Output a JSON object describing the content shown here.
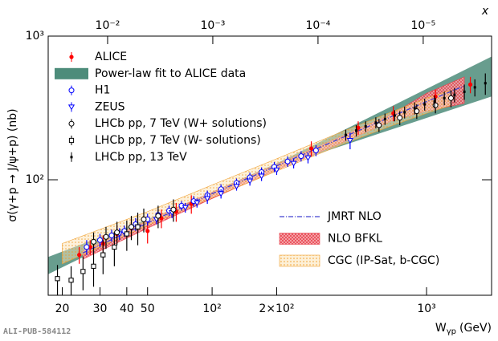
{
  "chart_data": {
    "type": "scatter",
    "log_x": true,
    "log_y": true,
    "x_label": {
      "main": "W",
      "sub": "γp",
      "unit": "(GeV)"
    },
    "y_label": "σ(γ+p → J/ψ+p) (nb)",
    "x2_label": "x",
    "watermark": "ALI-PUB-584112",
    "xlim": [
      17.2,
      2010
    ],
    "xticks": [
      20,
      30,
      40,
      50,
      {
        "value": 100,
        "label": "10²"
      },
      {
        "value": 200,
        "label": "2×10²"
      },
      {
        "value": 1000,
        "label": "10³"
      }
    ],
    "x2lim": [
      0.0367,
      2.24e-06
    ],
    "x2ticks": [
      {
        "value": 0.01,
        "label": "10⁻²"
      },
      {
        "value": 0.001,
        "label": "10⁻³"
      },
      {
        "value": 0.0001,
        "label": "10⁻⁴"
      },
      {
        "value": 1e-05,
        "label": "10⁻⁵"
      }
    ],
    "ylim": [
      15.7,
      1000
    ],
    "yticks": [
      {
        "value": 100,
        "label": "10²"
      },
      {
        "value": 1000,
        "label": "10³"
      }
    ],
    "series": [
      {
        "name": "ALICE",
        "kind": "points",
        "marker": "dot",
        "color": "#ff0000",
        "legend": "upper-left",
        "x": [
          24,
          27,
          31,
          36,
          42,
          50,
          58,
          68,
          80,
          290,
          480,
          700,
          1100,
          1600
        ],
        "values": [
          30,
          34,
          36,
          42,
          46,
          44,
          54,
          60,
          68,
          165,
          230,
          290,
          380,
          460
        ],
        "errors": [
          4,
          4,
          5,
          6,
          7,
          8,
          8,
          9,
          10,
          20,
          25,
          35,
          45,
          60
        ]
      },
      {
        "name": "Power-law fit to ALICE data",
        "kind": "band",
        "color": "#4d8c7a",
        "legend": "upper-left",
        "x": [
          17.2,
          60,
          200,
          2010
        ],
        "low": [
          22,
          55,
          122,
          380
        ],
        "high": [
          29,
          59,
          130,
          720
        ]
      },
      {
        "name": "H1",
        "kind": "points",
        "marker": "circle",
        "color": "#0000ff",
        "legend": "upper-left",
        "x": [
          26,
          30,
          34,
          39,
          44,
          50,
          56,
          63,
          72,
          82,
          95,
          110,
          130,
          150,
          170,
          195,
          225,
          260,
          305
        ],
        "values": [
          34,
          38,
          41,
          44,
          49,
          53,
          57,
          61,
          66,
          71,
          78,
          86,
          95,
          104,
          113,
          123,
          134,
          146,
          160
        ],
        "errors": [
          4,
          4,
          4,
          4,
          5,
          5,
          5,
          5,
          5,
          6,
          6,
          7,
          7,
          8,
          9,
          10,
          11,
          12,
          14
        ]
      },
      {
        "name": "ZEUS",
        "kind": "points",
        "marker": "triangle",
        "color": "#0000ff",
        "legend": "upper-left",
        "x": [
          37,
          45,
          55,
          65,
          75,
          85,
          95,
          110,
          130,
          150,
          170,
          200,
          240,
          280,
          440
        ],
        "values": [
          42,
          47,
          53,
          59,
          64,
          69,
          74,
          80,
          90,
          98,
          106,
          117,
          130,
          142,
          188
        ],
        "errors": [
          4,
          4,
          4,
          5,
          5,
          5,
          6,
          6,
          6,
          7,
          8,
          9,
          10,
          12,
          25
        ]
      },
      {
        "name": "LHCb pp, 7 TeV (W+ solutions)",
        "kind": "points",
        "marker": "circle",
        "color": "#000000",
        "legend": "upper-left",
        "x": [
          28,
          32,
          36,
          42,
          48,
          56,
          66,
          600,
          750,
          900,
          1100,
          1300
        ],
        "values": [
          37,
          40,
          43,
          47,
          53,
          56,
          62,
          240,
          270,
          300,
          330,
          370
        ],
        "errors": [
          6,
          7,
          8,
          9,
          10,
          10,
          11,
          25,
          30,
          35,
          40,
          50
        ]
      },
      {
        "name": "LHCb pp, 7 TeV (W- solutions)",
        "kind": "points",
        "marker": "square",
        "color": "#000000",
        "legend": "upper-left",
        "x": [
          19,
          22,
          25,
          28,
          31,
          35,
          40,
          45
        ],
        "values": [
          20.5,
          20,
          23,
          25,
          30,
          34,
          42,
          47
        ],
        "errors": [
          5,
          5,
          6,
          7,
          8,
          9,
          10,
          12
        ]
      },
      {
        "name": "LHCb pp, 13 TeV",
        "kind": "points",
        "marker": "smallsquare",
        "color": "#000000",
        "legend": "upper-left",
        "x": [
          420,
          470,
          520,
          580,
          640,
          710,
          790,
          880,
          980,
          1090,
          1210,
          1350,
          1500,
          1680,
          1880
        ],
        "values": [
          205,
          220,
          235,
          250,
          265,
          280,
          295,
          315,
          335,
          350,
          370,
          390,
          410,
          440,
          470
        ],
        "errors": [
          18,
          20,
          20,
          22,
          24,
          25,
          28,
          30,
          32,
          35,
          40,
          45,
          50,
          60,
          80
        ]
      },
      {
        "name": "JMRT NLO",
        "kind": "line",
        "color": "#4040d0",
        "legend": "lower-right",
        "x": [
          25,
          50,
          100,
          200,
          500,
          1000,
          1500
        ],
        "values": [
          31,
          50,
          80,
          125,
          225,
          350,
          450
        ]
      },
      {
        "name": "NLO BFKL",
        "kind": "band",
        "pattern": "cross",
        "color": "#e8434e",
        "legend": "lower-right",
        "x": [
          25,
          50,
          100,
          200,
          400,
          700,
          1000,
          1500
        ],
        "low": [
          28,
          46,
          74,
          117,
          180,
          260,
          300,
          340
        ],
        "high": [
          32,
          52,
          82,
          128,
          200,
          290,
          400,
          520
        ]
      },
      {
        "name": "CGC (IP-Sat, b-CGC)",
        "kind": "band",
        "pattern": "dots",
        "color": "#f0a030",
        "legend": "lower-right",
        "x": [
          20,
          50,
          100,
          200,
          400,
          700,
          1000,
          1300
        ],
        "low": [
          26,
          48,
          75,
          115,
          175,
          240,
          290,
          330
        ],
        "high": [
          36,
          60,
          92,
          140,
          215,
          300,
          370,
          420
        ]
      }
    ]
  }
}
